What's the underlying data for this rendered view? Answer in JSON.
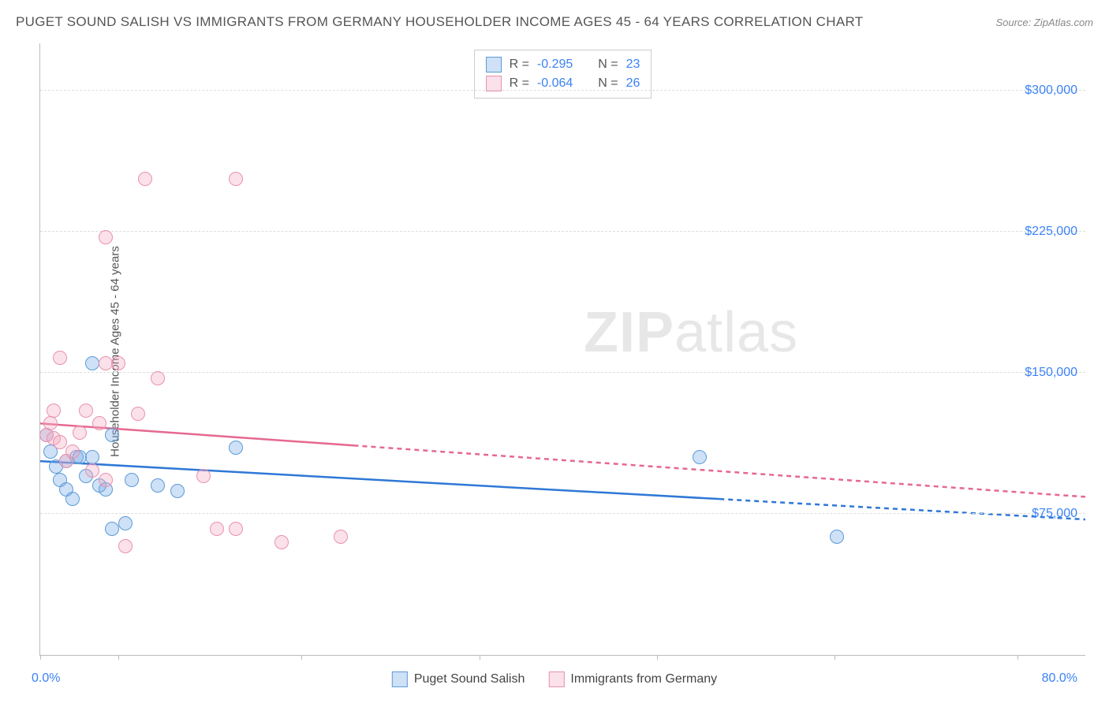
{
  "title": "PUGET SOUND SALISH VS IMMIGRANTS FROM GERMANY HOUSEHOLDER INCOME AGES 45 - 64 YEARS CORRELATION CHART",
  "source": "Source: ZipAtlas.com",
  "watermark_bold": "ZIP",
  "watermark_light": "atlas",
  "chart": {
    "type": "scatter",
    "background_color": "#ffffff",
    "grid_color": "#dddddd",
    "axis_color": "#bbbbbb",
    "text_color": "#555555",
    "value_color": "#3b82f6",
    "y_axis_title": "Householder Income Ages 45 - 64 years",
    "xlim": [
      0,
      80
    ],
    "ylim": [
      0,
      325000
    ],
    "x_tick_positions_pct": [
      0,
      7.5,
      25,
      42,
      59,
      76,
      93.5
    ],
    "y_gridlines": [
      {
        "value": 75000,
        "label": "$75,000"
      },
      {
        "value": 150000,
        "label": "$150,000"
      },
      {
        "value": 225000,
        "label": "$225,000"
      },
      {
        "value": 300000,
        "label": "$300,000"
      }
    ],
    "x_label_start": "0.0%",
    "x_label_end": "80.0%",
    "marker_radius": 9,
    "marker_stroke_width": 1.5,
    "trend_line_width": 2.5,
    "series": [
      {
        "name": "Puget Sound Salish",
        "fill_color": "rgba(118,169,230,0.35)",
        "stroke_color": "#5a9bd8",
        "trend_color": "#2f78d6",
        "R": "-0.295",
        "N": "23",
        "trend": {
          "x1": 0,
          "y1": 103000,
          "x2": 80,
          "y2": 72000,
          "solid_until_x": 52
        },
        "points": [
          {
            "x": 0.5,
            "y": 117000
          },
          {
            "x": 0.8,
            "y": 108000
          },
          {
            "x": 1.2,
            "y": 100000
          },
          {
            "x": 1.5,
            "y": 93000
          },
          {
            "x": 2.0,
            "y": 103000
          },
          {
            "x": 2.0,
            "y": 88000
          },
          {
            "x": 2.5,
            "y": 83000
          },
          {
            "x": 2.8,
            "y": 105000
          },
          {
            "x": 3.0,
            "y": 105000
          },
          {
            "x": 3.5,
            "y": 95000
          },
          {
            "x": 4.0,
            "y": 155000
          },
          {
            "x": 4.0,
            "y": 105000
          },
          {
            "x": 4.5,
            "y": 90000
          },
          {
            "x": 5.0,
            "y": 88000
          },
          {
            "x": 5.5,
            "y": 117000
          },
          {
            "x": 5.5,
            "y": 67000
          },
          {
            "x": 6.5,
            "y": 70000
          },
          {
            "x": 7.0,
            "y": 93000
          },
          {
            "x": 9.0,
            "y": 90000
          },
          {
            "x": 10.5,
            "y": 87000
          },
          {
            "x": 15.0,
            "y": 110000
          },
          {
            "x": 50.5,
            "y": 105000
          },
          {
            "x": 61.0,
            "y": 63000
          }
        ]
      },
      {
        "name": "Immigrants from Germany",
        "fill_color": "rgba(244,168,193,0.35)",
        "stroke_color": "#e991af",
        "trend_color": "#e6688f",
        "R": "-0.064",
        "N": "26",
        "trend": {
          "x1": 0,
          "y1": 123000,
          "x2": 80,
          "y2": 84000,
          "solid_until_x": 24
        },
        "points": [
          {
            "x": 0.5,
            "y": 117000
          },
          {
            "x": 0.8,
            "y": 123000
          },
          {
            "x": 1.0,
            "y": 130000
          },
          {
            "x": 1.0,
            "y": 115000
          },
          {
            "x": 1.5,
            "y": 158000
          },
          {
            "x": 1.5,
            "y": 113000
          },
          {
            "x": 2.0,
            "y": 103000
          },
          {
            "x": 2.5,
            "y": 108000
          },
          {
            "x": 3.0,
            "y": 118000
          },
          {
            "x": 3.5,
            "y": 130000
          },
          {
            "x": 4.0,
            "y": 98000
          },
          {
            "x": 4.5,
            "y": 123000
          },
          {
            "x": 5.0,
            "y": 222000
          },
          {
            "x": 5.0,
            "y": 155000
          },
          {
            "x": 5.0,
            "y": 93000
          },
          {
            "x": 6.0,
            "y": 155000
          },
          {
            "x": 6.5,
            "y": 58000
          },
          {
            "x": 7.5,
            "y": 128000
          },
          {
            "x": 8.0,
            "y": 253000
          },
          {
            "x": 9.0,
            "y": 147000
          },
          {
            "x": 12.5,
            "y": 95000
          },
          {
            "x": 13.5,
            "y": 67000
          },
          {
            "x": 15.0,
            "y": 253000
          },
          {
            "x": 15.0,
            "y": 67000
          },
          {
            "x": 18.5,
            "y": 60000
          },
          {
            "x": 23.0,
            "y": 63000
          }
        ]
      }
    ]
  },
  "legend_top": {
    "rows": [
      {
        "swatch_series": 0,
        "r_label": "R =",
        "n_label": "N ="
      },
      {
        "swatch_series": 1,
        "r_label": "R =",
        "n_label": "N ="
      }
    ]
  }
}
